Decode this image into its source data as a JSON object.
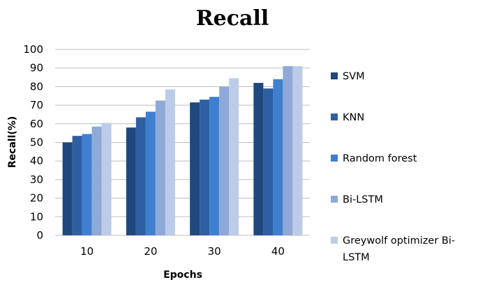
{
  "chart_data": {
    "type": "bar",
    "title": "Recall",
    "xlabel": "Epochs",
    "ylabel": "Recall(%)",
    "categories": [
      "10",
      "20",
      "30",
      "40"
    ],
    "ylim": [
      0,
      100
    ],
    "yticks": [
      0,
      10,
      20,
      30,
      40,
      50,
      60,
      70,
      80,
      90,
      100
    ],
    "grid": true,
    "legend_position": "right",
    "series": [
      {
        "name": "SVM",
        "color": "#1f497d",
        "values": [
          50,
          58,
          71.5,
          82
        ]
      },
      {
        "name": "KNN",
        "color": "#2e5fa3",
        "values": [
          53.5,
          63.5,
          73,
          79
        ]
      },
      {
        "name": "Random forest",
        "color": "#3f7fd0",
        "values": [
          54.5,
          66.5,
          74.5,
          84
        ]
      },
      {
        "name": "Bi-LSTM",
        "color": "#8ea9d8",
        "values": [
          58.5,
          72.5,
          80,
          91
        ]
      },
      {
        "name": "Greywolf optimizer Bi-LSTM",
        "color": "#bccbe8",
        "values": [
          60.5,
          78.5,
          84.5,
          91
        ]
      }
    ]
  }
}
